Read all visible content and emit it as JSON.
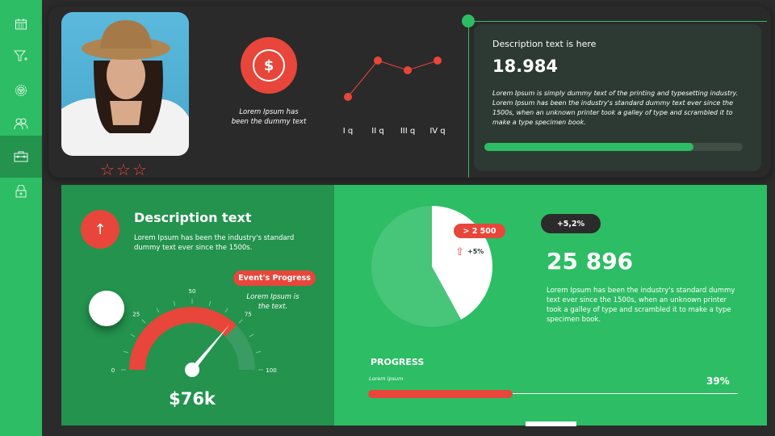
{
  "colors": {
    "green": "#2dbd64",
    "dark_green": "#23934e",
    "red": "#e8463a",
    "dark": "#2b2b2b"
  },
  "sidebar": {
    "items": [
      {
        "icon": "calendar-icon"
      },
      {
        "icon": "filter-add-icon"
      },
      {
        "icon": "settings-badge-icon"
      },
      {
        "icon": "users-icon"
      },
      {
        "icon": "briefcase-icon",
        "active": true
      },
      {
        "icon": "lock-icon"
      }
    ]
  },
  "profile": {
    "rating": 0,
    "max_rating": 3
  },
  "money": {
    "icon": "dollar-icon",
    "symbol": "$",
    "caption_line1": "Lorem Ipsum has",
    "caption_line2": "been the dummy text"
  },
  "chart_data": {
    "type": "line",
    "categories": [
      "I q",
      "II q",
      "III q",
      "IV q"
    ],
    "values": [
      30,
      75,
      63,
      75
    ],
    "ylim": [
      0,
      100
    ],
    "grid": false
  },
  "card": {
    "title": "Description text is here",
    "value": "18.984",
    "text": "Lorem Ipsum is simply dummy text of the printing and typesetting industry. Lorem Ipsum has been the industry's standard dummy text ever since the 1500s, when an unknown printer took a galley of type and scrambled it to make a type specimen book.",
    "progress_percent": 81
  },
  "desc": {
    "icon": "arrow-up-icon",
    "title": "Description text",
    "text": "Lorem Ipsum has been the industry's standard dummy text ever since the 1500s."
  },
  "gauge": {
    "badge": "Event's Progress",
    "note": "Lorem Ipsum is the text.",
    "ticks": [
      "0",
      "25",
      "50",
      "75",
      "100"
    ],
    "fill_to": 75,
    "needle": 72,
    "value": "$76k"
  },
  "pie": {
    "slice_percent": 42,
    "badge": "> 2 500",
    "change": "+5%"
  },
  "stats": {
    "badge": "+5,2%",
    "value": "25 896",
    "text": "Lorem Ipsum has been the industry's standard dummy text ever since the 1500s, when an unknown printer took a galley of type and scrambled it to make a type specimen book."
  },
  "progress": {
    "title": "PROGRESS",
    "label": "Lorem ipsum",
    "percent_label": "39%",
    "percent": 39
  }
}
